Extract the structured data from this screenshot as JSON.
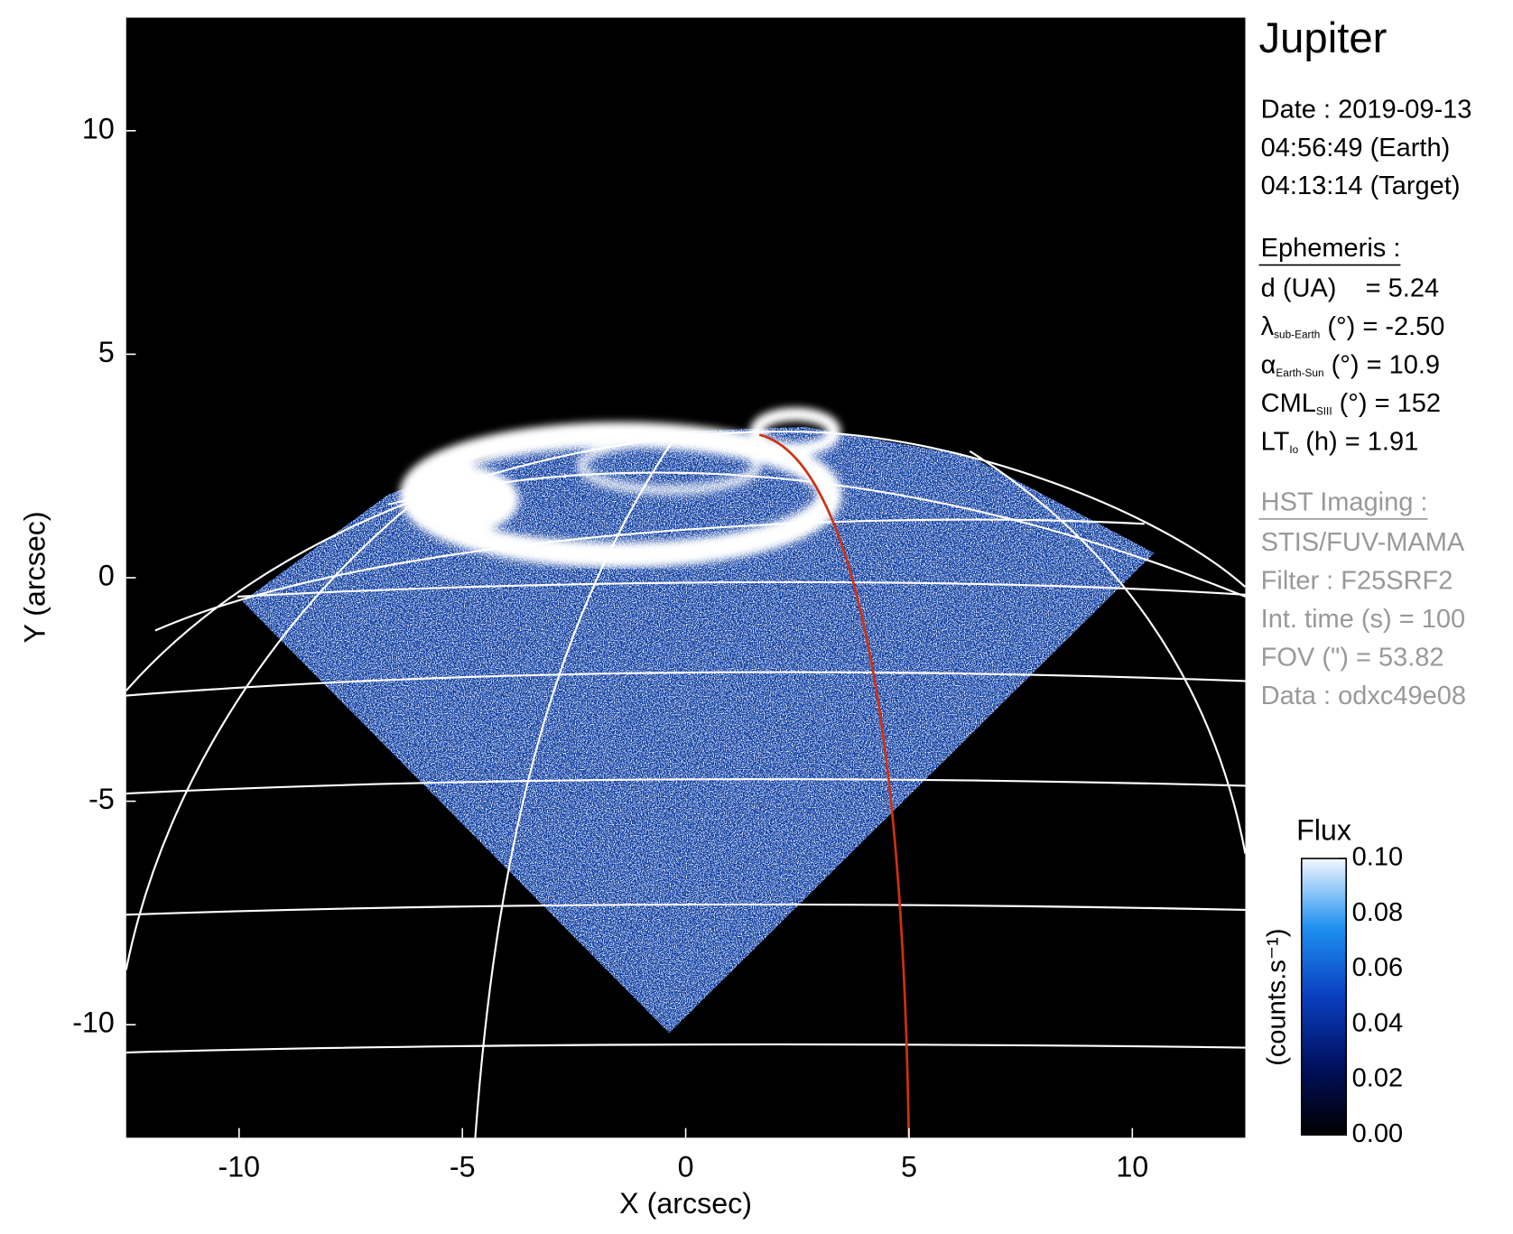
{
  "chart_data": {
    "type": "image",
    "x_label": "X (arcsec)",
    "y_label": "Y (arcsec)",
    "xlim": [
      -12.53,
      12.53
    ],
    "ylim": [
      -12.53,
      12.53
    ],
    "xticks": [
      -10,
      -5,
      0,
      5,
      10
    ],
    "yticks": [
      -10,
      -5,
      0,
      5,
      10
    ],
    "colorbar": {
      "label": "Flux",
      "unit_label": "(counts.s⁻¹)",
      "lim": [
        0,
        0.1
      ],
      "ticks": [
        {
          "value": 0,
          "label": "0.00"
        },
        {
          "value": 0.02,
          "label": "0.02"
        },
        {
          "value": 0.04,
          "label": "0.04"
        },
        {
          "value": 0.06,
          "label": "0.06"
        },
        {
          "value": 0.08,
          "label": "0.08"
        },
        {
          "value": 0.1,
          "label": "0.10"
        }
      ]
    }
  },
  "info": {
    "title": "Jupiter",
    "date": [
      "Date : 2019-09-13",
      "04:56:49 (Earth)",
      "04:13:14 (Target)"
    ],
    "ephemeris": {
      "heading": "Ephemeris :",
      "lines": [
        {
          "main": "d (UA)    = 5.24"
        },
        {
          "main": "λ",
          "sub": "sub-Earth",
          "rest": " (°) = -2.50"
        },
        {
          "main": "α",
          "sub": "Earth-Sun",
          "rest": " (°) = 10.9"
        },
        {
          "main": "CML",
          "sub": "SIII",
          "rest": " (°) = 152"
        },
        {
          "main": "LT",
          "sub": "Io",
          "rest": " (h) = 1.91"
        }
      ]
    },
    "imaging": {
      "heading": "HST Imaging :",
      "lines": [
        {
          "main": "STIS/FUV-MAMA"
        },
        {
          "main": "Filter : F25SRF2"
        },
        {
          "main": "Int. time (s) = 100"
        },
        {
          "main": "FOV (\") = 53.82"
        },
        {
          "main": "Data : odxc49e08"
        }
      ]
    }
  }
}
